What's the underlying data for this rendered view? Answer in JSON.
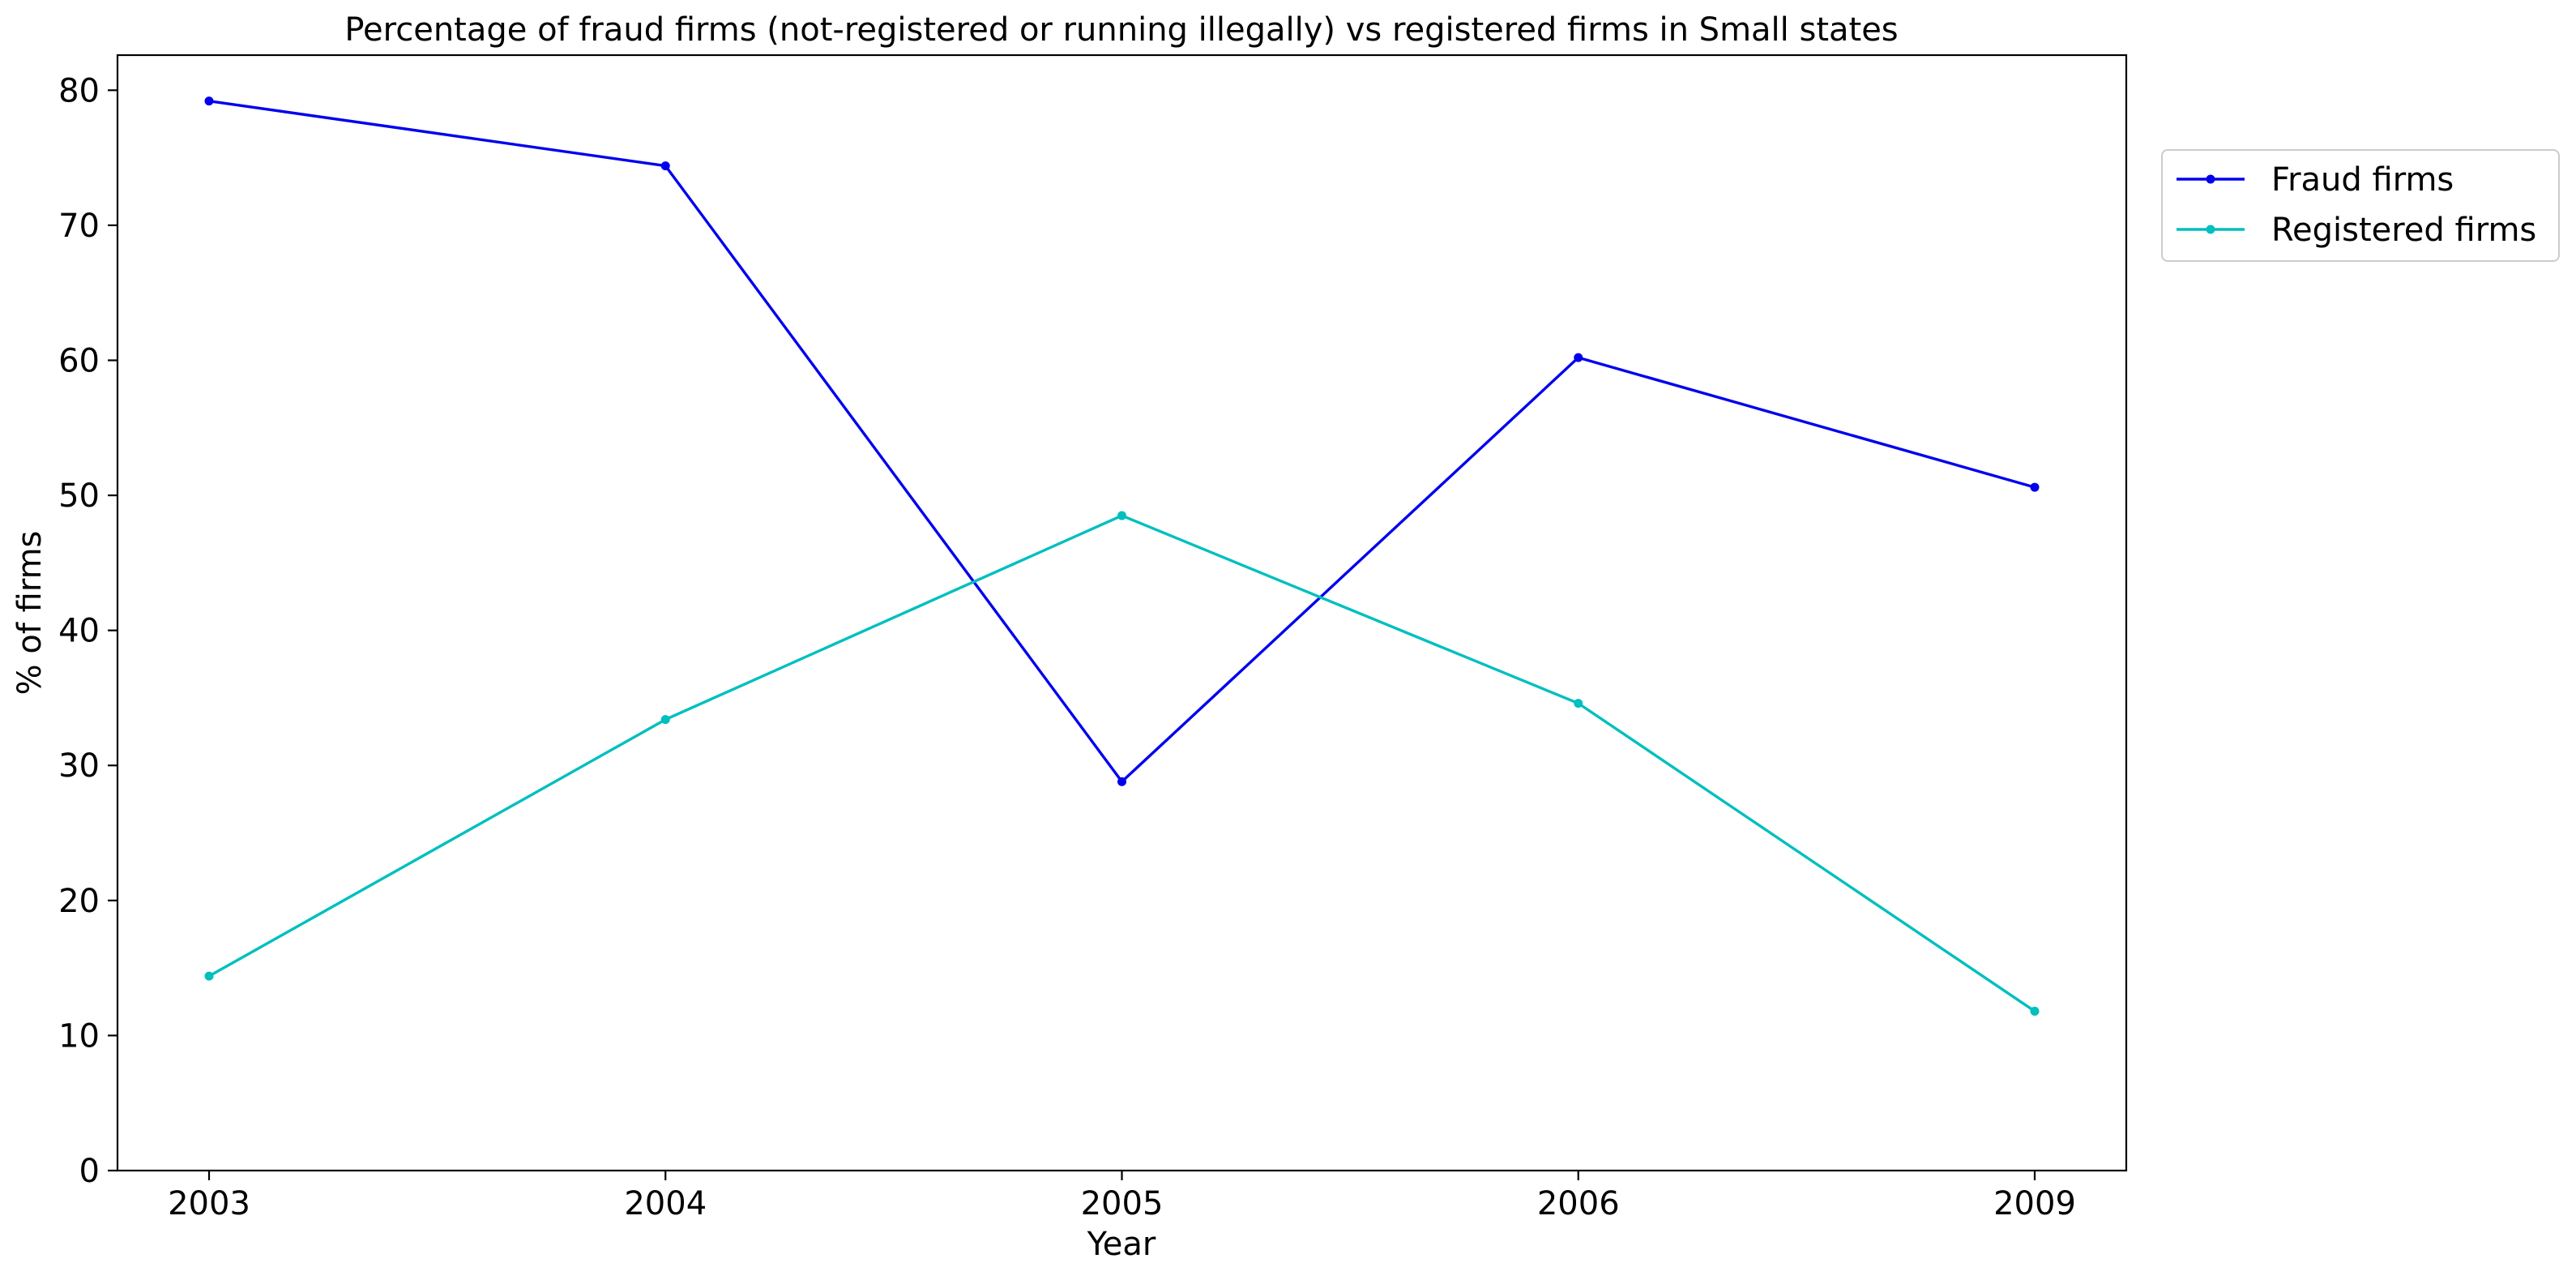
{
  "chart_data": {
    "type": "line",
    "title": "Percentage of fraud firms (not-registered or running illegally) vs registered firms in Small states",
    "xlabel": "Year",
    "ylabel": "% of firms",
    "categories": [
      "2003",
      "2004",
      "2005",
      "2006",
      "2009"
    ],
    "ylim": [
      0,
      82.6
    ],
    "yticks": [
      0,
      10,
      20,
      30,
      40,
      50,
      60,
      70,
      80
    ],
    "grid": false,
    "legend_position": "upper-right-outside",
    "series": [
      {
        "name": "Fraud firms",
        "color": "#0000ee",
        "values": [
          79.2,
          74.4,
          28.8,
          60.2,
          50.6
        ]
      },
      {
        "name": "Registered firms",
        "color": "#00bfbf",
        "values": [
          14.4,
          33.4,
          48.5,
          34.6,
          11.8
        ]
      }
    ]
  }
}
